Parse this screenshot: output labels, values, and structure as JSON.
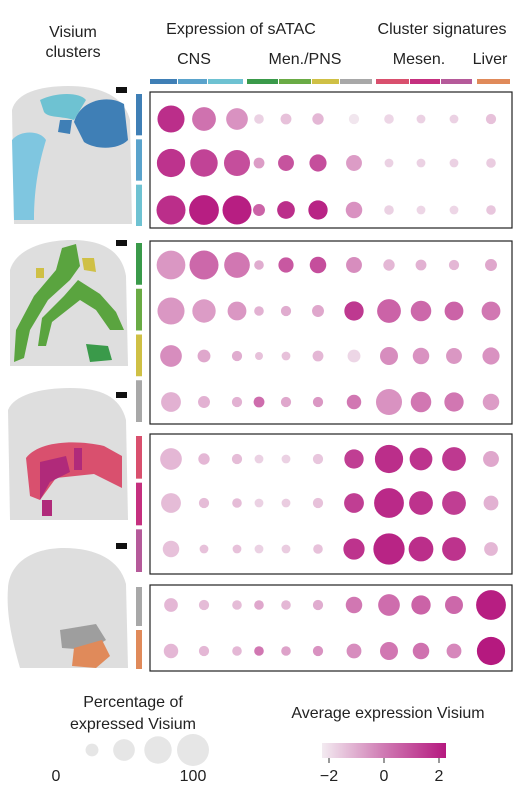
{
  "header": {
    "left_title_line1": "Visium",
    "left_title_line2": "clusters",
    "expression_title": "Expression of sATAC",
    "signature_title": "Cluster signatures"
  },
  "column_groups": [
    {
      "label": "CNS",
      "colors": [
        "#3f7fb6",
        "#5aa3cc",
        "#6ec2d2"
      ]
    },
    {
      "label": "Men./PNS",
      "colors": [
        "#3a9a4a",
        "#6aab45",
        "#cfc045",
        "#a8a8a8"
      ]
    },
    {
      "label": "Mesen.",
      "colors": [
        "#d9506e",
        "#c5307f",
        "#b55a9a"
      ]
    },
    {
      "label": "Liver",
      "colors": [
        "#e08a5a"
      ]
    }
  ],
  "colors": {
    "high": "#b5197f",
    "low": "#ecdfe8",
    "map_background": "#dedede",
    "cns_dark": "#3f7fb6",
    "cns_light": "#7fc6e0",
    "men_green": "#5aa43f",
    "men_yellow": "#cfc045",
    "mesen_pink": "#d9506e",
    "mesen_magenta": "#b02a7a",
    "grey": "#9e9e9e",
    "liver_orange": "#e08a5a"
  },
  "panels": [
    {
      "row_colors": [
        "#3f7fb6",
        "#5aa3cc",
        "#6ec2d2"
      ]
    },
    {
      "row_colors": [
        "#3a9a4a",
        "#6aab45",
        "#cfc045",
        "#a8a8a8"
      ]
    },
    {
      "row_colors": [
        "#d9506e",
        "#c5307f",
        "#b55a9a"
      ]
    },
    {
      "row_colors": [
        "#a8a8a8",
        "#e08a5a"
      ]
    }
  ],
  "chart_data": {
    "type": "dotplot",
    "n_columns": 11,
    "rows": [
      {
        "cluster_color": "#3f7fb6",
        "pct": [
          68,
          50,
          40,
          4,
          6,
          7,
          5,
          4,
          3,
          3,
          5
        ],
        "expr": [
          1.6,
          0.3,
          -0.3,
          -1.5,
          -1.2,
          -1.0,
          -1.9,
          -1.6,
          -1.5,
          -1.5,
          -1.2
        ]
      },
      {
        "cluster_color": "#5aa3cc",
        "pct": [
          75,
          70,
          62,
          6,
          18,
          22,
          18,
          3,
          3,
          3,
          4
        ],
        "expr": [
          1.5,
          1.2,
          1.0,
          -0.5,
          0.9,
          1.0,
          -0.5,
          -1.5,
          -1.5,
          -1.5,
          -1.4
        ]
      },
      {
        "cluster_color": "#6ec2d2",
        "pct": [
          80,
          85,
          80,
          8,
          24,
          30,
          20,
          4,
          3,
          3,
          4
        ],
        "expr": [
          1.6,
          1.9,
          1.9,
          0.6,
          1.6,
          1.8,
          -0.3,
          -1.5,
          -1.6,
          -1.6,
          -1.3
        ]
      },
      {
        "cluster_color": "#3a9a4a",
        "pct": [
          78,
          80,
          60,
          4,
          16,
          20,
          18,
          7,
          6,
          5,
          8
        ],
        "expr": [
          -0.4,
          0.5,
          0.2,
          -0.8,
          0.8,
          1.0,
          -0.2,
          -1.0,
          -0.9,
          -1.0,
          -0.7
        ]
      },
      {
        "cluster_color": "#6aab45",
        "pct": [
          68,
          48,
          28,
          4,
          5,
          8,
          30,
          50,
          35,
          28,
          28
        ],
        "expr": [
          -0.4,
          -0.5,
          -0.4,
          -0.9,
          -0.8,
          -0.7,
          1.4,
          0.6,
          0.5,
          0.6,
          0.2
        ]
      },
      {
        "cluster_color": "#cfc045",
        "pct": [
          40,
          10,
          5,
          2,
          3,
          6,
          10,
          25,
          20,
          18,
          22
        ],
        "expr": [
          -0.2,
          -0.7,
          -0.8,
          -1.2,
          -1.2,
          -1.0,
          -1.6,
          -0.2,
          -0.3,
          -0.4,
          -0.3
        ]
      },
      {
        "cluster_color": "#a8a8a8",
        "pct": [
          32,
          8,
          5,
          6,
          5,
          5,
          14,
          62,
          35,
          30,
          20
        ],
        "expr": [
          -0.9,
          -0.9,
          -0.9,
          0.4,
          -0.7,
          -0.4,
          0.2,
          -0.3,
          0.2,
          0.2,
          -0.5
        ]
      },
      {
        "cluster_color": "#d9506e",
        "pct": [
          40,
          7,
          5,
          3,
          3,
          5,
          30,
          75,
          45,
          50,
          18
        ],
        "expr": [
          -1.0,
          -1.0,
          -1.1,
          -1.5,
          -1.5,
          -1.3,
          1.3,
          1.6,
          1.5,
          1.4,
          -0.7
        ]
      },
      {
        "cluster_color": "#c5307f",
        "pct": [
          32,
          5,
          4,
          3,
          3,
          5,
          32,
          85,
          50,
          50,
          15
        ],
        "expr": [
          -1.1,
          -1.1,
          -1.1,
          -1.5,
          -1.4,
          -1.2,
          1.3,
          1.7,
          1.5,
          1.3,
          -0.9
        ]
      },
      {
        "cluster_color": "#b55a9a",
        "pct": [
          20,
          3,
          3,
          3,
          3,
          4,
          38,
          95,
          55,
          50,
          12
        ],
        "expr": [
          -1.2,
          -1.2,
          -1.2,
          -1.5,
          -1.4,
          -1.2,
          1.5,
          1.8,
          1.6,
          1.5,
          -1.0
        ]
      },
      {
        "cluster_color": "#a8a8a8",
        "pct": [
          12,
          5,
          4,
          4,
          4,
          5,
          20,
          40,
          30,
          25,
          85
        ],
        "expr": [
          -1.0,
          -1.1,
          -1.1,
          -0.7,
          -1.0,
          -0.8,
          0.2,
          0.4,
          0.6,
          0.5,
          1.9
        ]
      },
      {
        "cluster_color": "#e08a5a",
        "pct": [
          14,
          5,
          4,
          4,
          4,
          5,
          15,
          25,
          20,
          15,
          75
        ],
        "expr": [
          -1.0,
          -1.0,
          -1.0,
          0.2,
          -0.6,
          -0.3,
          -0.2,
          0.2,
          0.3,
          -0.1,
          2.0
        ]
      }
    ],
    "size_legend": {
      "title_line1": "Percentage of",
      "title_line2": "expressed Visium",
      "values": [
        10,
        40,
        70,
        100
      ],
      "min_label": "0",
      "max_label": "100"
    },
    "color_legend": {
      "title": "Average expression Visium",
      "range": [
        -2,
        2
      ],
      "ticks": [
        "−2",
        "0",
        "2"
      ]
    }
  }
}
